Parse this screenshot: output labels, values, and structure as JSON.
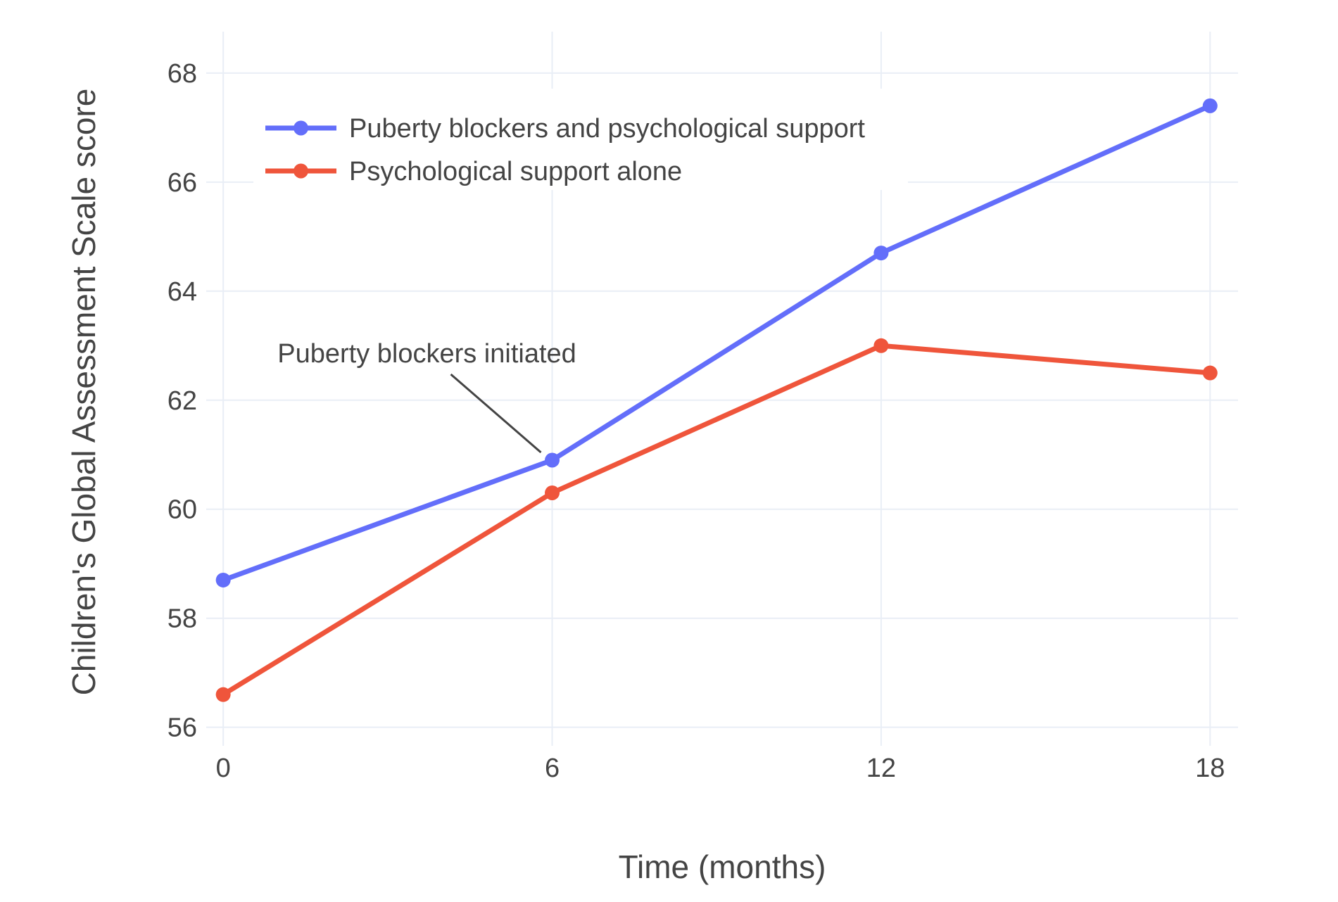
{
  "chart_data": {
    "type": "line",
    "title": "",
    "xlabel": "Time (months)",
    "ylabel": "Children's Global Assessment Scale score",
    "x": [
      0,
      6,
      12,
      18
    ],
    "x_ticks": [
      0,
      6,
      12,
      18
    ],
    "y_ticks": [
      56,
      58,
      60,
      62,
      64,
      66,
      68
    ],
    "xlim": [
      -0.31,
      18.51
    ],
    "ylim": [
      55.66,
      68.76
    ],
    "grid": true,
    "legend_position": "inside-top-left",
    "series": [
      {
        "name": "Puberty blockers and psychological support",
        "color": "#636EFA",
        "values": [
          58.7,
          60.9,
          64.7,
          67.4
        ]
      },
      {
        "name": "Psychological support alone",
        "color": "#EF553B",
        "values": [
          56.6,
          60.3,
          63.0,
          62.5
        ]
      }
    ],
    "annotation": {
      "text": "Puberty blockers initiated",
      "target_x": 6,
      "target_y": 60.9
    }
  },
  "colors": {
    "background": "#FFFFFF",
    "text": "#444444",
    "grid": "#E9EEF6",
    "annotation_line": "#444444"
  }
}
